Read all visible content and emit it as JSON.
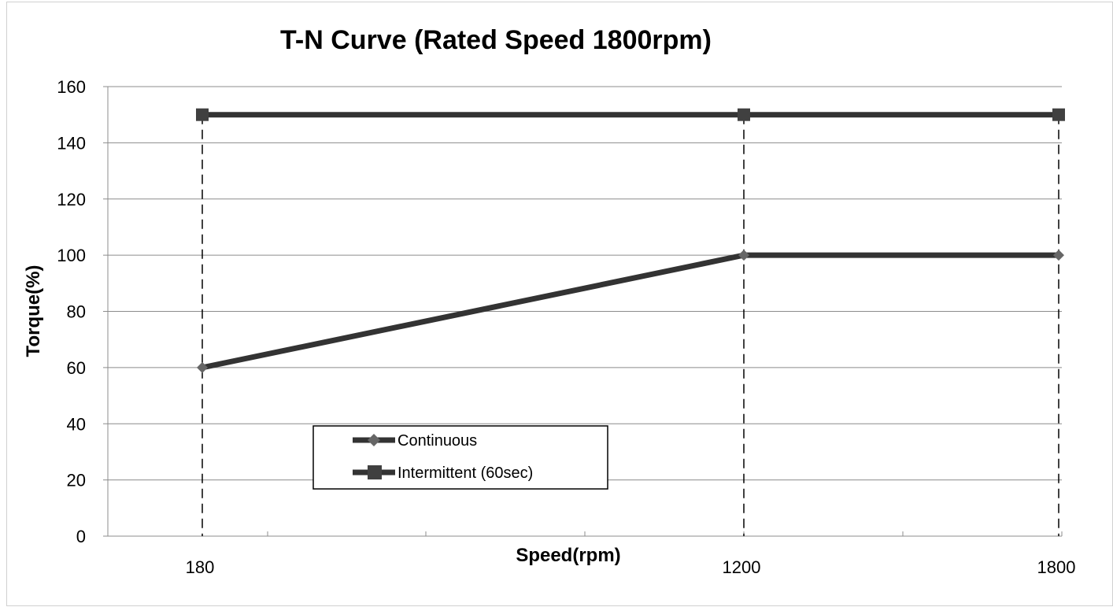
{
  "chart_data": {
    "type": "line",
    "title": "T-N Curve (Rated Speed 1800rpm)",
    "xlabel": "Speed(rpm)",
    "ylabel": "Torque(%)",
    "categories": [
      "180",
      "1200",
      "1800"
    ],
    "ylim": [
      0,
      160
    ],
    "yticks": [
      "0",
      "20",
      "40",
      "60",
      "80",
      "100",
      "120",
      "140",
      "160"
    ],
    "grid": true,
    "legend_position": "lower-left",
    "series": [
      {
        "name": "Continuous",
        "values": [
          60,
          100,
          100
        ],
        "marker": "diamond",
        "color": "#333333"
      },
      {
        "name": "Intermittent (60sec)",
        "values": [
          150,
          150,
          150
        ],
        "marker": "square",
        "color": "#333333"
      }
    ]
  }
}
